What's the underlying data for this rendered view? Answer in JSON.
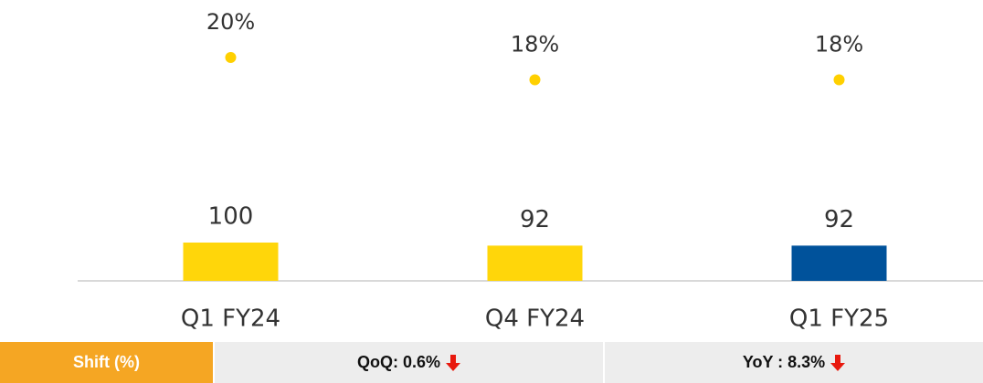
{
  "chart_data": {
    "type": "bar",
    "categories": [
      "Q1 FY24",
      "Q4 FY24",
      "Q1 FY25"
    ],
    "series": [
      {
        "type": "bar",
        "values": [
          100,
          92,
          92
        ],
        "colors": [
          "#FFD60A",
          "#FFD60A",
          "#00529B"
        ]
      },
      {
        "type": "dot",
        "axis": "y2",
        "values": [
          20,
          18,
          18
        ],
        "value_labels": [
          "20%",
          "18%",
          "18%"
        ],
        "color": "#FFD000"
      }
    ],
    "ylim": [
      0,
      700
    ],
    "y2lim": [
      0,
      24
    ]
  },
  "footer": {
    "cells": [
      "Shift (%)",
      "QoQ: 0.6%",
      "YoY : 8.3%"
    ]
  }
}
